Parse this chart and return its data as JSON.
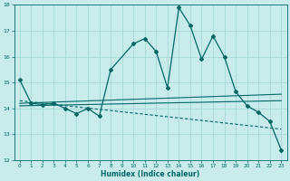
{
  "xlabel": "Humidex (Indice chaleur)",
  "bg_color": "#c8ecec",
  "line_color": "#006666",
  "grid_color": "#a8d8d8",
  "xlim": [
    -0.5,
    23.5
  ],
  "ylim": [
    12,
    18
  ],
  "yticks": [
    12,
    13,
    14,
    15,
    16,
    17,
    18
  ],
  "xticks": [
    0,
    1,
    2,
    3,
    4,
    5,
    6,
    7,
    8,
    9,
    10,
    11,
    12,
    13,
    14,
    15,
    16,
    17,
    18,
    19,
    20,
    21,
    22,
    23
  ],
  "main_x": [
    0,
    1,
    2,
    3,
    4,
    5,
    6,
    7,
    8,
    10,
    11,
    12,
    13,
    14,
    15,
    16,
    17,
    18,
    19,
    20,
    21,
    22,
    23
  ],
  "main_y": [
    15.1,
    14.2,
    14.15,
    14.2,
    14.0,
    13.8,
    14.0,
    13.7,
    15.5,
    16.5,
    16.7,
    16.2,
    14.8,
    17.9,
    17.2,
    15.9,
    16.8,
    16.0,
    14.65,
    14.1,
    13.85,
    13.5,
    12.4
  ],
  "trend1_x": [
    0,
    23
  ],
  "trend1_y": [
    14.2,
    14.55
  ],
  "trend2_x": [
    0,
    23
  ],
  "trend2_y": [
    14.1,
    14.3
  ],
  "trend3_x": [
    0,
    23
  ],
  "trend3_y": [
    14.3,
    13.2
  ]
}
